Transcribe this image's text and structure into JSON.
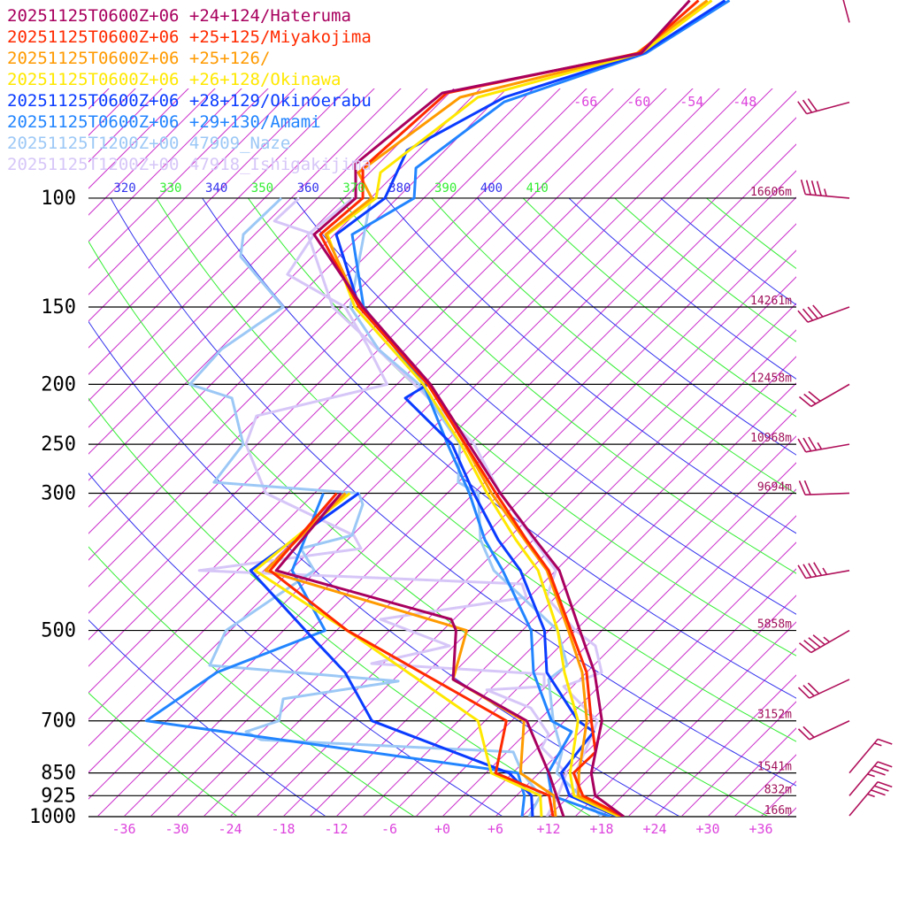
{
  "chart_data": {
    "type": "line",
    "title": "Skew-T log-P sounding comparison",
    "xlabel": "Temperature (°C)",
    "ylabel": "Pressure (hPa)",
    "pressure_levels": [
      100,
      150,
      200,
      250,
      300,
      500,
      700,
      850,
      925,
      1000
    ],
    "pressure_labels": [
      "100",
      "150",
      "200",
      "250",
      "300",
      "500",
      "700",
      "850",
      "925",
      "1000"
    ],
    "heights": [
      "16606m",
      "14261m",
      "12458m",
      "10968m",
      "9694m",
      "5858m",
      "3152m",
      "1541m",
      "832m",
      "166m"
    ],
    "temperature_ticks": [
      -36,
      -30,
      -24,
      -18,
      -12,
      -6,
      0,
      6,
      12,
      18,
      24,
      30,
      36
    ],
    "temperature_tick_labels": [
      "-36",
      "-30",
      "-24",
      "-18",
      "-12",
      "-6",
      "+0",
      "+6",
      "+12",
      "+18",
      "+24",
      "+30",
      "+36"
    ],
    "isotherm_top_labels": [
      {
        "t": -66,
        "label": "-66"
      },
      {
        "t": -60,
        "label": "-60"
      },
      {
        "t": -54,
        "label": "-54"
      },
      {
        "t": -48,
        "label": "-48"
      }
    ],
    "theta_labels": [
      {
        "theta": 320,
        "label": "320"
      },
      {
        "theta": 330,
        "label": "330"
      },
      {
        "theta": 340,
        "label": "340"
      },
      {
        "theta": 350,
        "label": "350"
      },
      {
        "theta": 360,
        "label": "360"
      },
      {
        "theta": 370,
        "label": "370"
      },
      {
        "theta": 380,
        "label": "380"
      },
      {
        "theta": 390,
        "label": "390"
      },
      {
        "theta": 400,
        "label": "400"
      },
      {
        "theta": 410,
        "label": "410"
      }
    ],
    "colors": {
      "isotherm": "#cc33cc",
      "theta_even": "#33ee33",
      "theta_odd": "#3333ee",
      "tick_label": "#dd44dd",
      "height_label": "#a0105a",
      "wind": "#b0105a"
    },
    "series": [
      {
        "label": "20251125T0600Z+06 +24+124/Hateruma",
        "color": "#a8005e",
        "temperature": [
          [
            47.9,
            -64.3
          ],
          [
            58.3,
            -63.8
          ],
          [
            67.6,
            -81.8
          ],
          [
            88,
            -83.6
          ],
          [
            100,
            -79.7
          ],
          [
            114.5,
            -80.3
          ],
          [
            150,
            -66.6
          ],
          [
            200,
            -50.2
          ],
          [
            250,
            -39.1
          ],
          [
            300,
            -30
          ],
          [
            356.7,
            -20.8
          ],
          [
            400,
            -14.6
          ],
          [
            500,
            -5.5
          ],
          [
            584.6,
            0.9
          ],
          [
            700,
            7.2
          ],
          [
            850,
            11.9
          ],
          [
            925,
            14.9
          ],
          [
            1000,
            20.5
          ]
        ],
        "dewpoint": [
          [
            300,
            -48
          ],
          [
            400,
            -46.6
          ],
          [
            479.8,
            -21.3
          ],
          [
            500,
            -19.5
          ],
          [
            600,
            -14.3
          ],
          [
            700,
            -1.3
          ],
          [
            850,
            7.1
          ],
          [
            1000,
            13.7
          ]
        ]
      },
      {
        "label": "20251125T0600Z+06 +25+125/Miyakojima",
        "color": "#ff2a00",
        "temperature": [
          [
            47.9,
            -63.3
          ],
          [
            58.3,
            -64.1
          ],
          [
            67.6,
            -81.3
          ],
          [
            89.4,
            -82.3
          ],
          [
            100,
            -78.9
          ],
          [
            114.5,
            -79.6
          ],
          [
            150,
            -67
          ],
          [
            200,
            -50.5
          ],
          [
            250,
            -39.5
          ],
          [
            300,
            -30.5
          ],
          [
            356.7,
            -21.8
          ],
          [
            400,
            -15.8
          ],
          [
            500,
            -6.5
          ],
          [
            584.6,
            0
          ],
          [
            700,
            6
          ],
          [
            786,
            10
          ],
          [
            850,
            9.9
          ],
          [
            925,
            13.5
          ],
          [
            1000,
            20.5
          ]
        ],
        "dewpoint": [
          [
            300,
            -48.5
          ],
          [
            400,
            -47.3
          ],
          [
            500,
            -31.8
          ],
          [
            700,
            -3.6
          ],
          [
            850,
            1.1
          ],
          [
            925,
            9.7
          ],
          [
            1000,
            12.5
          ]
        ]
      },
      {
        "label": "20251125T0600Z+06 +25+126/",
        "color": "#ff9a00",
        "temperature": [
          [
            47.9,
            -62.3
          ],
          [
            58.3,
            -64.3
          ],
          [
            68.7,
            -79.3
          ],
          [
            90.9,
            -82.3
          ],
          [
            100,
            -77.9
          ],
          [
            114.5,
            -79
          ],
          [
            150,
            -67
          ],
          [
            200,
            -50.3
          ],
          [
            250,
            -39.6
          ],
          [
            300,
            -31
          ],
          [
            356.7,
            -22
          ],
          [
            400,
            -16
          ],
          [
            500,
            -6.8
          ],
          [
            584.6,
            -0.5
          ],
          [
            700,
            5.5
          ],
          [
            850,
            10.5
          ],
          [
            925,
            13
          ],
          [
            1000,
            20.3
          ]
        ],
        "dewpoint": [
          [
            300,
            -47.5
          ],
          [
            400,
            -47.8
          ],
          [
            500,
            -18.3
          ],
          [
            600,
            -14.3
          ],
          [
            700,
            -1.6
          ],
          [
            850,
            3.9
          ],
          [
            925,
            10.2
          ],
          [
            1000,
            12.8
          ]
        ]
      },
      {
        "label": "20251125T0600Z+06 +26+128/Okinawa",
        "color": "#ffe800",
        "temperature": [
          [
            47.9,
            -61.8
          ],
          [
            58.3,
            -63.8
          ],
          [
            68.7,
            -77.3
          ],
          [
            90.9,
            -79.8
          ],
          [
            100,
            -77.4
          ],
          [
            114.5,
            -78.8
          ],
          [
            150,
            -67.5
          ],
          [
            200,
            -51
          ],
          [
            250,
            -40
          ],
          [
            300,
            -31.5
          ],
          [
            356.7,
            -23
          ],
          [
            400,
            -17
          ],
          [
            500,
            -8
          ],
          [
            584.6,
            -2.5
          ],
          [
            700,
            4.5
          ],
          [
            850,
            9.5
          ],
          [
            925,
            12.5
          ],
          [
            1000,
            20
          ]
        ],
        "dewpoint": [
          [
            300,
            -47
          ],
          [
            400,
            -49
          ],
          [
            500,
            -31.8
          ],
          [
            700,
            -6.8
          ],
          [
            850,
            0.6
          ],
          [
            925,
            8.7
          ],
          [
            1000,
            11.2
          ]
        ]
      },
      {
        "label": "20251125T0600Z+06 +28+129/Okinoerabu",
        "color": "#0a3cff",
        "temperature": [
          [
            47.9,
            -60.3
          ],
          [
            58.3,
            -63.6
          ],
          [
            68.7,
            -74.3
          ],
          [
            83.7,
            -79.3
          ],
          [
            100,
            -76.4
          ],
          [
            114.5,
            -77.8
          ],
          [
            150,
            -67
          ],
          [
            200,
            -50.5
          ],
          [
            210.5,
            -51.5
          ],
          [
            250,
            -41
          ],
          [
            300,
            -33
          ],
          [
            356.7,
            -25
          ],
          [
            400,
            -19
          ],
          [
            500,
            -9.5
          ],
          [
            584.6,
            -4.5
          ],
          [
            700,
            4.5
          ],
          [
            729,
            7.5
          ],
          [
            850,
            8.5
          ],
          [
            925,
            12
          ],
          [
            1000,
            19.8
          ]
        ],
        "dewpoint": [
          [
            300,
            -46
          ],
          [
            400,
            -49.5
          ],
          [
            500,
            -36.5
          ],
          [
            584.6,
            -27.3
          ],
          [
            700,
            -18.8
          ],
          [
            850,
            2.6
          ],
          [
            925,
            7.7
          ],
          [
            1000,
            10.2
          ]
        ]
      },
      {
        "label": "20251125T0600Z+06 +29+130/Amami",
        "color": "#2285ff",
        "temperature": [
          [
            47.9,
            -59.8
          ],
          [
            58.3,
            -63.3
          ],
          [
            69.9,
            -73.8
          ],
          [
            89.4,
            -76.3
          ],
          [
            100,
            -73.1
          ],
          [
            114.5,
            -76
          ],
          [
            150,
            -66.5
          ],
          [
            200,
            -51
          ],
          [
            250,
            -41.5
          ],
          [
            300,
            -33.5
          ],
          [
            356.7,
            -26.5
          ],
          [
            400,
            -21
          ],
          [
            500,
            -11
          ],
          [
            584.6,
            -6
          ],
          [
            700,
            1.5
          ],
          [
            729,
            5
          ],
          [
            850,
            7
          ],
          [
            925,
            10
          ],
          [
            1000,
            19
          ]
        ],
        "dewpoint": [
          [
            300,
            -50
          ],
          [
            400,
            -44.8
          ],
          [
            500,
            -34.3
          ],
          [
            584.6,
            -41.8
          ],
          [
            700,
            -44.3
          ],
          [
            850,
            3.6
          ],
          [
            925,
            6.9
          ],
          [
            1000,
            9
          ]
        ]
      },
      {
        "label": "20251125T1200Z+00 47909_Naze",
        "color": "#9cc8f6",
        "temperature": [
          [
            100,
            -78
          ],
          [
            150,
            -68
          ],
          [
            175.7,
            -60
          ],
          [
            200,
            -51.5
          ],
          [
            250,
            -40.1
          ],
          [
            288,
            -36
          ],
          [
            300,
            -32.5
          ],
          [
            356.7,
            -27
          ],
          [
            400,
            -22
          ],
          [
            500,
            -8
          ],
          [
            569.4,
            -3
          ],
          [
            600,
            -3.5
          ],
          [
            700,
            1.7
          ],
          [
            786,
            6.2
          ],
          [
            850,
            8
          ],
          [
            1000,
            18
          ]
        ],
        "dewpoint": [
          [
            100,
            -88.1
          ],
          [
            114.5,
            -88.3
          ],
          [
            124.3,
            -86.1
          ],
          [
            150,
            -75.6
          ],
          [
            175.7,
            -77.8
          ],
          [
            200,
            -77.4
          ],
          [
            210.5,
            -71.1
          ],
          [
            250,
            -64.6
          ],
          [
            288,
            -63.6
          ],
          [
            300,
            -46
          ],
          [
            312.6,
            -44.3
          ],
          [
            350.9,
            -42
          ],
          [
            368.6,
            -46.3
          ],
          [
            400,
            -42.3
          ],
          [
            500,
            -45.5
          ],
          [
            569.4,
            -43.4
          ],
          [
            604,
            -20.3
          ],
          [
            645,
            -31.3
          ],
          [
            700,
            -29.3
          ],
          [
            729,
            -31.8
          ],
          [
            751,
            -29.2
          ],
          [
            786,
            0.7
          ],
          [
            850,
            4.1
          ],
          [
            925,
            8.7
          ],
          [
            1000,
            9.8
          ]
        ]
      },
      {
        "label": "20251125T1200Z+00 47918_Ishigakijima",
        "color": "#d6c6f8",
        "temperature": [
          [
            100,
            -80
          ],
          [
            114.5,
            -81
          ],
          [
            150,
            -70
          ],
          [
            200,
            -52
          ],
          [
            250,
            -38.5
          ],
          [
            300,
            -30
          ],
          [
            356.7,
            -21
          ],
          [
            400,
            -15
          ],
          [
            441.8,
            -13
          ],
          [
            500,
            -6
          ],
          [
            529.5,
            -2
          ],
          [
            584.6,
            1.7
          ],
          [
            616,
            -1
          ],
          [
            700,
            6.7
          ],
          [
            751,
            8
          ],
          [
            850,
            10.1
          ],
          [
            925,
            13
          ],
          [
            1000,
            20
          ]
        ],
        "dewpoint": [
          [
            100,
            -86.1
          ],
          [
            108.9,
            -86.3
          ],
          [
            114.5,
            -80.3
          ],
          [
            132.8,
            -78.8
          ],
          [
            150,
            -68.6
          ],
          [
            172.8,
            -61.8
          ],
          [
            200,
            -55.1
          ],
          [
            225,
            -66.3
          ],
          [
            250,
            -64.3
          ],
          [
            300,
            -56.5
          ],
          [
            350.9,
            -41.8
          ],
          [
            368.6,
            -39.5
          ],
          [
            400,
            -55.3
          ],
          [
            420.5,
            -17.3
          ],
          [
            441.8,
            -15.3
          ],
          [
            479.8,
            -29.3
          ],
          [
            529.5,
            -18.5
          ],
          [
            565.6,
            -25.3
          ],
          [
            588.5,
            -4.6
          ],
          [
            616,
            -3.2
          ],
          [
            624,
            -9.3
          ],
          [
            667,
            -2.3
          ],
          [
            736,
            2.7
          ],
          [
            773,
            3.4
          ],
          [
            850,
            9.1
          ],
          [
            925,
            10.7
          ],
          [
            1000,
            11.8
          ]
        ]
      }
    ],
    "winds": [
      {
        "p": 52,
        "dir": 345,
        "kt": 10
      },
      {
        "p": 70,
        "dir": 255,
        "kt": 30
      },
      {
        "p": 100,
        "dir": 275,
        "kt": 45
      },
      {
        "p": 150,
        "dir": 250,
        "kt": 40
      },
      {
        "p": 200,
        "dir": 240,
        "kt": 30
      },
      {
        "p": 250,
        "dir": 260,
        "kt": 35
      },
      {
        "p": 300,
        "dir": 268,
        "kt": 20
      },
      {
        "p": 400,
        "dir": 260,
        "kt": 45
      },
      {
        "p": 500,
        "dir": 240,
        "kt": 45
      },
      {
        "p": 600,
        "dir": 245,
        "kt": 30
      },
      {
        "p": 700,
        "dir": 245,
        "kt": 20
      },
      {
        "p": 850,
        "dir": 40,
        "kt": 15
      },
      {
        "p": 925,
        "dir": 40,
        "kt": 35
      },
      {
        "p": 1000,
        "dir": 40,
        "kt": 35
      }
    ]
  }
}
